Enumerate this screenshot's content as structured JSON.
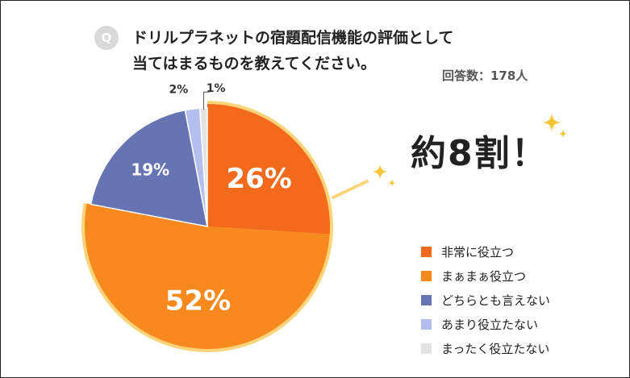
{
  "question": {
    "badge": "Q",
    "line1": "ドリルプラネットの宿題配信機能の評価として",
    "line2": "当てはまるものを教えてください。"
  },
  "respondents": "回答数：178人",
  "callout": "約8割！",
  "colors": {
    "highlight_outline": "#fbd47a",
    "sparkle": "#f6c636"
  },
  "chart_data": {
    "type": "pie",
    "categories": [
      "非常に役立つ",
      "まぁまぁ役立つ",
      "どちらとも言えない",
      "あまり役立たない",
      "まったく役立たない"
    ],
    "values": [
      26,
      52,
      19,
      2,
      1
    ],
    "value_labels": [
      "26%",
      "52%",
      "19%",
      "2%",
      "1%"
    ],
    "colors": [
      "#f36a1c",
      "#f7891f",
      "#6674b4",
      "#b3c0ef",
      "#e3e3e3"
    ],
    "highlighted": [
      0,
      1
    ],
    "start": "12 o'clock, clockwise",
    "legend_position": "right"
  }
}
